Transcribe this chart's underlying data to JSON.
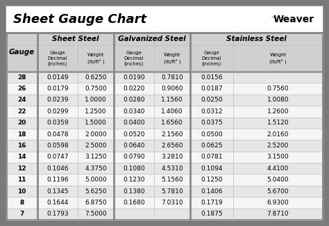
{
  "title": "Sheet Gauge Chart",
  "bg_outer": "#7a7a7a",
  "bg_white": "#ffffff",
  "bg_row_light": "#e8e8e8",
  "bg_header_grey": "#c8c8c8",
  "gauges": [
    28,
    26,
    24,
    22,
    20,
    18,
    16,
    14,
    12,
    11,
    10,
    8,
    7
  ],
  "sheet_steel": [
    [
      "0.0149",
      "0.6250"
    ],
    [
      "0.0179",
      "0.7500"
    ],
    [
      "0.0239",
      "1.0000"
    ],
    [
      "0.0299",
      "1.2500"
    ],
    [
      "0.0359",
      "1.5000"
    ],
    [
      "0.0478",
      "2.0000"
    ],
    [
      "0.0598",
      "2.5000"
    ],
    [
      "0.0747",
      "3.1250"
    ],
    [
      "0.1046",
      "4.3750"
    ],
    [
      "0.1196",
      "5.0000"
    ],
    [
      "0.1345",
      "5.6250"
    ],
    [
      "0.1644",
      "6.8750"
    ],
    [
      "0.1793",
      "7.5000"
    ]
  ],
  "galvanized_steel": [
    [
      "0.0190",
      "0.7810"
    ],
    [
      "0.0220",
      "0.9060"
    ],
    [
      "0.0280",
      "1.1560"
    ],
    [
      "0.0340",
      "1.4060"
    ],
    [
      "0.0400",
      "1.6560"
    ],
    [
      "0.0520",
      "2.1560"
    ],
    [
      "0.0640",
      "2.6560"
    ],
    [
      "0.0790",
      "3.2810"
    ],
    [
      "0.1080",
      "4.5310"
    ],
    [
      "0.1230",
      "5.1560"
    ],
    [
      "0.1380",
      "5.7810"
    ],
    [
      "0.1680",
      "7.0310"
    ],
    [
      "",
      ""
    ]
  ],
  "stainless_steel": [
    [
      "0.0156",
      ""
    ],
    [
      "0.0187",
      "0.7560"
    ],
    [
      "0.0250",
      "1.0080"
    ],
    [
      "0.0312",
      "1.2600"
    ],
    [
      "0.0375",
      "1.5120"
    ],
    [
      "0.0500",
      "2.0160"
    ],
    [
      "0.0625",
      "2.5200"
    ],
    [
      "0.0781",
      "3.1500"
    ],
    [
      "0.1094",
      "4.4100"
    ],
    [
      "0.1250",
      "5.0400"
    ],
    [
      "0.1406",
      "5.6700"
    ],
    [
      "0.1719",
      "6.9300"
    ],
    [
      "0.1875",
      "7.8710"
    ]
  ]
}
